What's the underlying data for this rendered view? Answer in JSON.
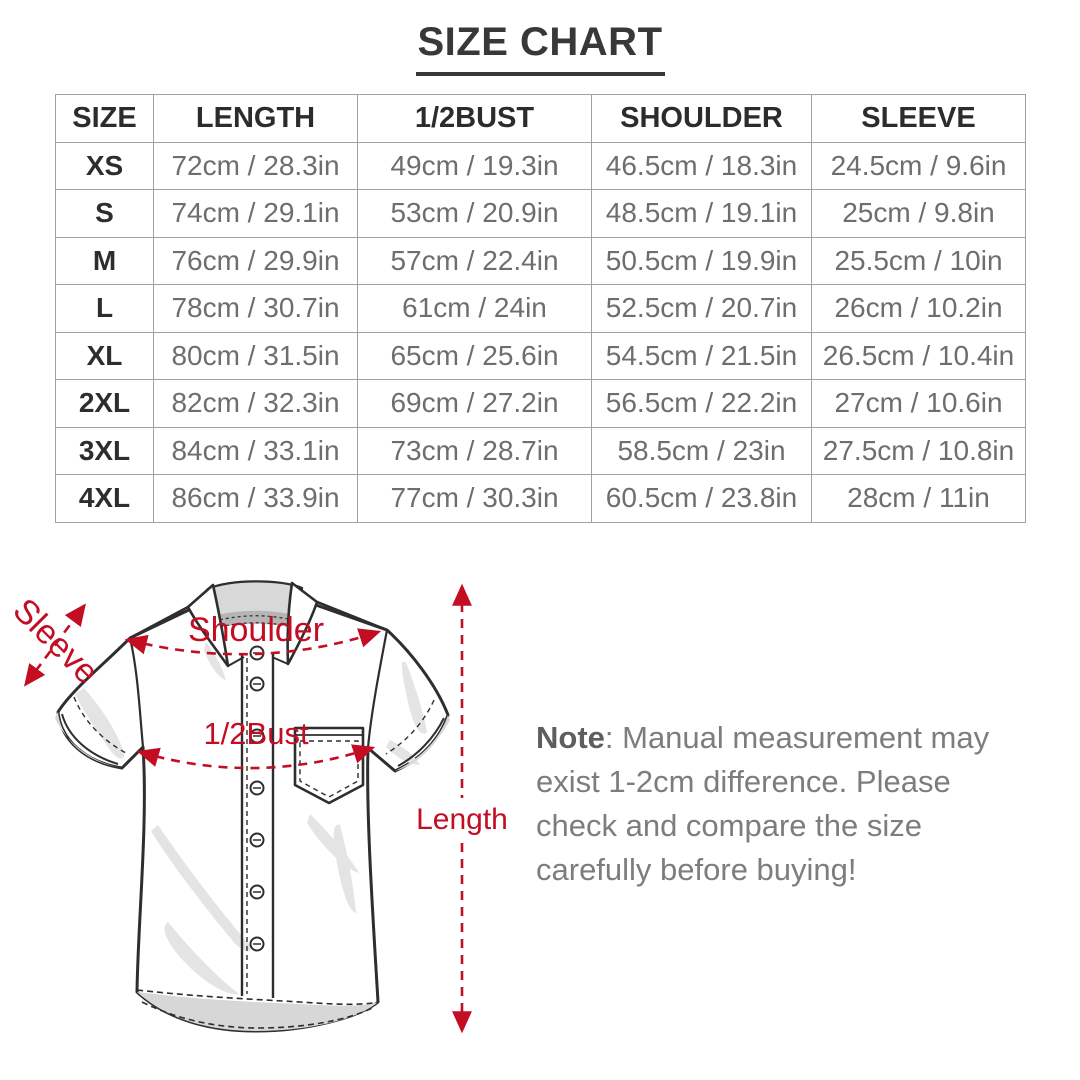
{
  "title": "SIZE CHART",
  "table": {
    "headers": [
      "SIZE",
      "LENGTH",
      "1/2BUST",
      "SHOULDER",
      "SLEEVE"
    ],
    "rows": [
      [
        "XS",
        "72cm / 28.3in",
        "49cm / 19.3in",
        "46.5cm / 18.3in",
        "24.5cm / 9.6in"
      ],
      [
        "S",
        "74cm / 29.1in",
        "53cm / 20.9in",
        "48.5cm / 19.1in",
        "25cm / 9.8in"
      ],
      [
        "M",
        "76cm / 29.9in",
        "57cm / 22.4in",
        "50.5cm / 19.9in",
        "25.5cm / 10in"
      ],
      [
        "L",
        "78cm / 30.7in",
        "61cm / 24in",
        "52.5cm / 20.7in",
        "26cm / 10.2in"
      ],
      [
        "XL",
        "80cm / 31.5in",
        "65cm / 25.6in",
        "54.5cm / 21.5in",
        "26.5cm / 10.4in"
      ],
      [
        "2XL",
        "82cm / 32.3in",
        "69cm / 27.2in",
        "56.5cm / 22.2in",
        "27cm / 10.6in"
      ],
      [
        "3XL",
        "84cm / 33.1in",
        "73cm / 28.7in",
        "58.5cm / 23in",
        "27.5cm / 10.8in"
      ],
      [
        "4XL",
        "86cm / 33.9in",
        "77cm / 30.3in",
        "60.5cm / 23.8in",
        "28cm / 11in"
      ]
    ]
  },
  "diagram": {
    "labels": {
      "sleeve": "Sleeve",
      "shoulder": "Shoulder",
      "half_bust": "1/2Bust",
      "length": "Length"
    },
    "annotation_color": "#c20d23"
  },
  "note": {
    "label": "Note",
    "line1_rest": ": Manual measurement may",
    "line2": "exist 1-2cm difference. Please",
    "line3": "check and compare the size",
    "line4": "carefully before buying!"
  }
}
